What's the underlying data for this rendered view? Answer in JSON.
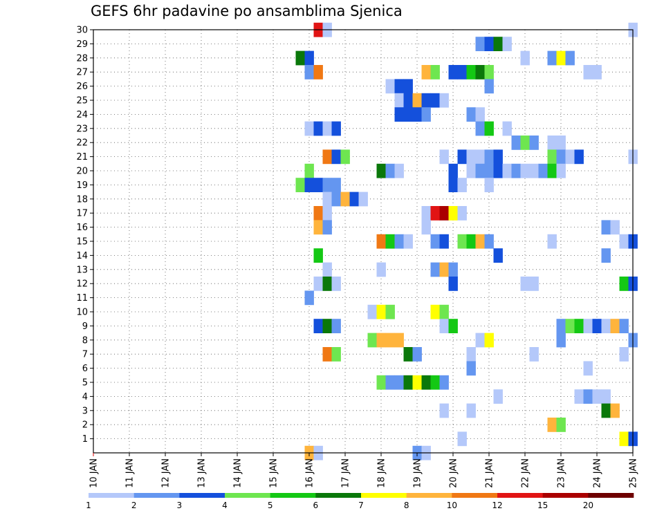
{
  "chart_data": {
    "type": "heatmap",
    "title": "GEFS 6hr padavine po ansamblima Sjenica",
    "x_tick_labels": [
      "10 JAN",
      "11 JAN",
      "12 JAN",
      "13 JAN",
      "14 JAN",
      "15 JAN",
      "16 JAN",
      "17 JAN",
      "18 JAN",
      "19 JAN",
      "20 JAN",
      "21 JAN",
      "22 JAN",
      "23 JAN",
      "24 JAN",
      "25 JAN"
    ],
    "y_tick_labels": [
      "1",
      "2",
      "3",
      "4",
      "5",
      "6",
      "7",
      "8",
      "9",
      "10",
      "11",
      "12",
      "13",
      "14",
      "15",
      "16",
      "17",
      "18",
      "19",
      "20",
      "21",
      "22",
      "23",
      "24",
      "25",
      "26",
      "27",
      "28",
      "29",
      "30"
    ],
    "x_range_days": [
      10,
      25
    ],
    "y_range": [
      0,
      30
    ],
    "grid": true,
    "time_step_hours": 6,
    "colorbar": {
      "labels": [
        "1",
        "2",
        "3",
        "4",
        "5",
        "6",
        "7",
        "8",
        "10",
        "12",
        "15",
        "20"
      ],
      "bounds": [
        1,
        2,
        3,
        4,
        5,
        6,
        7,
        8,
        10,
        12,
        15,
        20
      ],
      "colors": [
        "#b4c8fa",
        "#6496f0",
        "#1450dc",
        "#6ee650",
        "#14c814",
        "#0a780a",
        "#ffff00",
        "#ffb43c",
        "#f07814",
        "#e11414",
        "#aa0000",
        "#6e0000"
      ],
      "placement": "bottom"
    },
    "cells_format": "[member, time_in_days, precip_category_index]",
    "cells": [
      [
        30,
        16.25,
        10
      ],
      [
        30,
        16.5,
        1
      ],
      [
        30,
        25.0,
        1
      ],
      [
        29,
        20.75,
        2
      ],
      [
        29,
        21.0,
        3
      ],
      [
        29,
        21.25,
        6
      ],
      [
        29,
        21.5,
        1
      ],
      [
        28,
        15.75,
        6
      ],
      [
        28,
        16.0,
        3
      ],
      [
        28,
        22.0,
        1
      ],
      [
        28,
        22.75,
        2
      ],
      [
        28,
        23.0,
        7
      ],
      [
        28,
        23.25,
        2
      ],
      [
        27,
        16.0,
        2
      ],
      [
        27,
        16.25,
        9
      ],
      [
        27,
        19.25,
        8
      ],
      [
        27,
        19.5,
        4
      ],
      [
        27,
        20.0,
        3
      ],
      [
        27,
        20.25,
        3
      ],
      [
        27,
        20.5,
        5
      ],
      [
        27,
        20.75,
        6
      ],
      [
        27,
        21.0,
        4
      ],
      [
        27,
        23.75,
        1
      ],
      [
        27,
        24.0,
        1
      ],
      [
        26,
        18.25,
        1
      ],
      [
        26,
        18.5,
        3
      ],
      [
        26,
        18.75,
        3
      ],
      [
        26,
        21.0,
        2
      ],
      [
        25,
        18.5,
        1
      ],
      [
        25,
        18.75,
        3
      ],
      [
        25,
        19.0,
        8
      ],
      [
        25,
        19.25,
        3
      ],
      [
        25,
        19.5,
        3
      ],
      [
        25,
        19.75,
        1
      ],
      [
        24,
        18.5,
        3
      ],
      [
        24,
        18.75,
        3
      ],
      [
        24,
        19.0,
        3
      ],
      [
        24,
        19.25,
        2
      ],
      [
        24,
        20.5,
        2
      ],
      [
        24,
        20.75,
        1
      ],
      [
        23,
        16.0,
        1
      ],
      [
        23,
        16.25,
        3
      ],
      [
        23,
        16.5,
        1
      ],
      [
        23,
        16.75,
        3
      ],
      [
        23,
        20.75,
        2
      ],
      [
        23,
        21.0,
        5
      ],
      [
        23,
        21.5,
        1
      ],
      [
        22,
        21.75,
        2
      ],
      [
        22,
        22.0,
        4
      ],
      [
        22,
        22.25,
        2
      ],
      [
        22,
        22.75,
        1
      ],
      [
        22,
        23.0,
        1
      ],
      [
        21,
        16.5,
        9
      ],
      [
        21,
        16.75,
        3
      ],
      [
        21,
        17.0,
        4
      ],
      [
        21,
        19.75,
        1
      ],
      [
        21,
        20.25,
        3
      ],
      [
        21,
        20.5,
        1
      ],
      [
        21,
        20.75,
        1
      ],
      [
        21,
        21.0,
        2
      ],
      [
        21,
        21.25,
        3
      ],
      [
        21,
        22.75,
        4
      ],
      [
        21,
        23.0,
        2
      ],
      [
        21,
        23.25,
        1
      ],
      [
        21,
        23.5,
        3
      ],
      [
        21,
        25.0,
        1
      ],
      [
        20,
        16.0,
        4
      ],
      [
        20,
        18.0,
        6
      ],
      [
        20,
        18.25,
        2
      ],
      [
        20,
        18.5,
        1
      ],
      [
        20,
        20.0,
        3
      ],
      [
        20,
        20.5,
        1
      ],
      [
        20,
        20.75,
        2
      ],
      [
        20,
        21.0,
        2
      ],
      [
        20,
        21.25,
        3
      ],
      [
        20,
        21.5,
        1
      ],
      [
        20,
        21.75,
        2
      ],
      [
        20,
        22.0,
        1
      ],
      [
        20,
        22.25,
        1
      ],
      [
        20,
        22.5,
        2
      ],
      [
        20,
        22.75,
        5
      ],
      [
        20,
        23.0,
        1
      ],
      [
        19,
        15.75,
        4
      ],
      [
        19,
        16.0,
        3
      ],
      [
        19,
        16.25,
        3
      ],
      [
        19,
        16.5,
        2
      ],
      [
        19,
        16.75,
        2
      ],
      [
        19,
        20.0,
        3
      ],
      [
        19,
        20.25,
        1
      ],
      [
        19,
        21.0,
        1
      ],
      [
        18,
        16.5,
        1
      ],
      [
        18,
        16.75,
        2
      ],
      [
        18,
        17.0,
        8
      ],
      [
        18,
        17.25,
        3
      ],
      [
        18,
        17.5,
        1
      ],
      [
        17,
        16.25,
        9
      ],
      [
        17,
        16.5,
        1
      ],
      [
        17,
        19.25,
        1
      ],
      [
        17,
        19.5,
        10
      ],
      [
        17,
        19.75,
        11
      ],
      [
        17,
        20.0,
        7
      ],
      [
        17,
        20.25,
        1
      ],
      [
        16,
        16.25,
        8
      ],
      [
        16,
        16.5,
        2
      ],
      [
        16,
        19.25,
        1
      ],
      [
        16,
        24.25,
        2
      ],
      [
        16,
        24.5,
        1
      ],
      [
        15,
        18.0,
        9
      ],
      [
        15,
        18.25,
        5
      ],
      [
        15,
        18.5,
        2
      ],
      [
        15,
        18.75,
        1
      ],
      [
        15,
        19.5,
        2
      ],
      [
        15,
        19.75,
        3
      ],
      [
        15,
        20.25,
        4
      ],
      [
        15,
        20.5,
        5
      ],
      [
        15,
        20.75,
        8
      ],
      [
        15,
        21.0,
        2
      ],
      [
        15,
        22.75,
        1
      ],
      [
        15,
        24.75,
        1
      ],
      [
        15,
        25.0,
        3
      ],
      [
        14,
        16.25,
        5
      ],
      [
        14,
        21.25,
        3
      ],
      [
        14,
        24.25,
        2
      ],
      [
        13,
        16.5,
        1
      ],
      [
        13,
        18.0,
        1
      ],
      [
        13,
        19.5,
        2
      ],
      [
        13,
        19.75,
        8
      ],
      [
        13,
        20.0,
        2
      ],
      [
        12,
        16.25,
        1
      ],
      [
        12,
        16.5,
        6
      ],
      [
        12,
        16.75,
        1
      ],
      [
        12,
        20.0,
        3
      ],
      [
        12,
        22.0,
        1
      ],
      [
        12,
        22.25,
        1
      ],
      [
        12,
        24.75,
        5
      ],
      [
        12,
        25.0,
        3
      ],
      [
        11,
        16.0,
        2
      ],
      [
        10,
        17.75,
        1
      ],
      [
        10,
        18.0,
        7
      ],
      [
        10,
        18.25,
        4
      ],
      [
        10,
        19.5,
        7
      ],
      [
        10,
        19.75,
        4
      ],
      [
        9,
        16.25,
        3
      ],
      [
        9,
        16.5,
        6
      ],
      [
        9,
        16.75,
        2
      ],
      [
        9,
        19.75,
        1
      ],
      [
        9,
        20.0,
        5
      ],
      [
        9,
        23.0,
        2
      ],
      [
        9,
        23.25,
        4
      ],
      [
        9,
        23.5,
        5
      ],
      [
        9,
        23.75,
        1
      ],
      [
        9,
        24.0,
        3
      ],
      [
        9,
        24.25,
        1
      ],
      [
        9,
        24.5,
        8
      ],
      [
        9,
        24.75,
        2
      ],
      [
        8,
        17.75,
        4
      ],
      [
        8,
        18.0,
        8
      ],
      [
        8,
        18.25,
        8
      ],
      [
        8,
        18.5,
        8
      ],
      [
        8,
        20.75,
        1
      ],
      [
        8,
        21.0,
        7
      ],
      [
        8,
        23.0,
        2
      ],
      [
        8,
        25.0,
        2
      ],
      [
        7,
        16.5,
        9
      ],
      [
        7,
        16.75,
        4
      ],
      [
        7,
        18.75,
        6
      ],
      [
        7,
        19.0,
        2
      ],
      [
        7,
        20.5,
        1
      ],
      [
        7,
        22.25,
        1
      ],
      [
        7,
        24.75,
        1
      ],
      [
        6,
        20.5,
        2
      ],
      [
        6,
        23.75,
        1
      ],
      [
        5,
        18.0,
        4
      ],
      [
        5,
        18.25,
        2
      ],
      [
        5,
        18.5,
        2
      ],
      [
        5,
        18.75,
        6
      ],
      [
        5,
        19.0,
        7
      ],
      [
        5,
        19.25,
        6
      ],
      [
        5,
        19.5,
        5
      ],
      [
        5,
        19.75,
        2
      ],
      [
        4,
        21.25,
        1
      ],
      [
        4,
        23.5,
        1
      ],
      [
        4,
        23.75,
        2
      ],
      [
        4,
        24.0,
        1
      ],
      [
        4,
        24.25,
        1
      ],
      [
        3,
        19.75,
        1
      ],
      [
        3,
        20.5,
        1
      ],
      [
        3,
        24.25,
        6
      ],
      [
        3,
        24.5,
        8
      ],
      [
        2,
        22.75,
        8
      ],
      [
        2,
        23.0,
        4
      ],
      [
        1,
        20.25,
        1
      ],
      [
        1,
        24.75,
        7
      ],
      [
        1,
        25.0,
        3
      ],
      [
        0,
        16.0,
        8
      ],
      [
        0,
        16.25,
        1
      ],
      [
        0,
        19.0,
        2
      ],
      [
        0,
        19.25,
        1
      ]
    ]
  }
}
